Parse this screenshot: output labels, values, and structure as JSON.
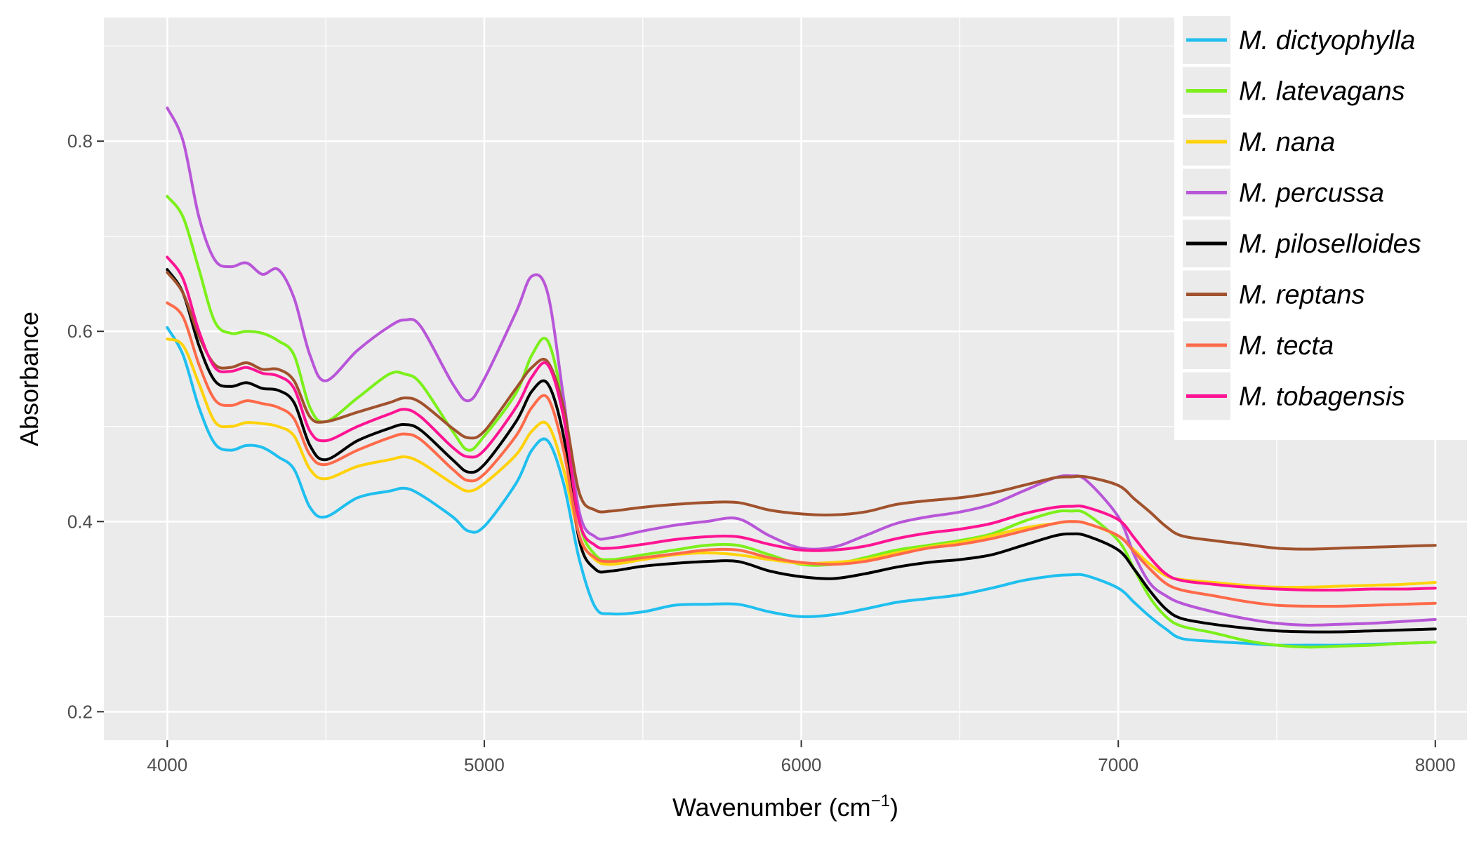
{
  "chart_data": {
    "type": "line",
    "xlabel": "Wavenumber (cm",
    "xlabel_sup": "−1",
    "xlabel_close": ")",
    "ylabel": "Absorbance",
    "xlim": [
      3800,
      8100
    ],
    "ylim": [
      0.17,
      0.93
    ],
    "xticks": [
      4000,
      5000,
      6000,
      7000,
      8000
    ],
    "xtick_labels": [
      "4000",
      "5000",
      "6000",
      "7000",
      "8000"
    ],
    "yticks": [
      0.2,
      0.4,
      0.6,
      0.8
    ],
    "ytick_labels": [
      "0.2",
      "0.4",
      "0.6",
      "0.8"
    ],
    "grid": true,
    "legend_position": "top-right",
    "x": [
      4000,
      4050,
      4100,
      4150,
      4200,
      4250,
      4300,
      4350,
      4400,
      4450,
      4500,
      4600,
      4700,
      4750,
      4800,
      4900,
      4950,
      5000,
      5100,
      5150,
      5200,
      5250,
      5300,
      5350,
      5400,
      5500,
      5600,
      5700,
      5800,
      5900,
      6000,
      6100,
      6200,
      6300,
      6400,
      6500,
      6600,
      6700,
      6800,
      6850,
      6900,
      7000,
      7050,
      7100,
      7150,
      7200,
      7300,
      7400,
      7500,
      7600,
      7700,
      7800,
      7900,
      8000
    ],
    "series": [
      {
        "name": "M. dictyophylla",
        "color": "#1fbfef",
        "values": [
          0.604,
          0.575,
          0.52,
          0.482,
          0.475,
          0.48,
          0.478,
          0.468,
          0.455,
          0.415,
          0.405,
          0.425,
          0.432,
          0.435,
          0.428,
          0.405,
          0.39,
          0.395,
          0.44,
          0.475,
          0.485,
          0.44,
          0.36,
          0.31,
          0.303,
          0.305,
          0.312,
          0.313,
          0.313,
          0.305,
          0.3,
          0.302,
          0.308,
          0.315,
          0.319,
          0.323,
          0.33,
          0.338,
          0.343,
          0.344,
          0.343,
          0.33,
          0.315,
          0.3,
          0.287,
          0.277,
          0.274,
          0.272,
          0.27,
          0.27,
          0.27,
          0.271,
          0.272,
          0.273
        ]
      },
      {
        "name": "M. latevagans",
        "color": "#7cf01a",
        "values": [
          0.742,
          0.72,
          0.665,
          0.61,
          0.598,
          0.6,
          0.598,
          0.59,
          0.575,
          0.52,
          0.505,
          0.53,
          0.555,
          0.555,
          0.545,
          0.495,
          0.475,
          0.49,
          0.535,
          0.575,
          0.59,
          0.52,
          0.4,
          0.365,
          0.36,
          0.365,
          0.37,
          0.375,
          0.375,
          0.365,
          0.355,
          0.355,
          0.362,
          0.37,
          0.375,
          0.38,
          0.387,
          0.4,
          0.41,
          0.411,
          0.408,
          0.38,
          0.35,
          0.32,
          0.3,
          0.29,
          0.283,
          0.275,
          0.27,
          0.268,
          0.269,
          0.27,
          0.272,
          0.273
        ]
      },
      {
        "name": "M. nana",
        "color": "#ffd20a",
        "values": [
          0.592,
          0.585,
          0.545,
          0.505,
          0.5,
          0.504,
          0.503,
          0.5,
          0.49,
          0.455,
          0.445,
          0.458,
          0.465,
          0.468,
          0.462,
          0.44,
          0.432,
          0.44,
          0.47,
          0.495,
          0.502,
          0.455,
          0.385,
          0.36,
          0.355,
          0.36,
          0.365,
          0.367,
          0.365,
          0.36,
          0.356,
          0.357,
          0.36,
          0.367,
          0.373,
          0.378,
          0.385,
          0.393,
          0.398,
          0.4,
          0.398,
          0.385,
          0.37,
          0.355,
          0.343,
          0.339,
          0.336,
          0.333,
          0.331,
          0.331,
          0.332,
          0.333,
          0.334,
          0.336
        ]
      },
      {
        "name": "M. percussa",
        "color": "#b856d8",
        "values": [
          0.835,
          0.8,
          0.72,
          0.675,
          0.668,
          0.672,
          0.66,
          0.665,
          0.635,
          0.575,
          0.548,
          0.58,
          0.605,
          0.612,
          0.605,
          0.545,
          0.527,
          0.55,
          0.62,
          0.658,
          0.64,
          0.53,
          0.41,
          0.384,
          0.383,
          0.39,
          0.396,
          0.4,
          0.403,
          0.385,
          0.372,
          0.373,
          0.385,
          0.398,
          0.405,
          0.41,
          0.418,
          0.432,
          0.446,
          0.448,
          0.443,
          0.405,
          0.365,
          0.335,
          0.322,
          0.314,
          0.305,
          0.298,
          0.293,
          0.291,
          0.292,
          0.293,
          0.295,
          0.297
        ]
      },
      {
        "name": "M. piloselloides",
        "color": "#000000",
        "values": [
          0.665,
          0.64,
          0.585,
          0.548,
          0.542,
          0.546,
          0.54,
          0.538,
          0.525,
          0.48,
          0.465,
          0.485,
          0.498,
          0.502,
          0.496,
          0.465,
          0.452,
          0.46,
          0.505,
          0.537,
          0.545,
          0.49,
          0.38,
          0.35,
          0.348,
          0.353,
          0.356,
          0.358,
          0.358,
          0.348,
          0.342,
          0.34,
          0.345,
          0.352,
          0.357,
          0.36,
          0.365,
          0.375,
          0.385,
          0.387,
          0.385,
          0.37,
          0.35,
          0.327,
          0.308,
          0.298,
          0.292,
          0.288,
          0.285,
          0.284,
          0.284,
          0.285,
          0.286,
          0.287
        ]
      },
      {
        "name": "M. reptans",
        "color": "#a0522d",
        "values": [
          0.662,
          0.64,
          0.595,
          0.565,
          0.562,
          0.567,
          0.56,
          0.56,
          0.548,
          0.51,
          0.505,
          0.515,
          0.525,
          0.53,
          0.525,
          0.498,
          0.488,
          0.495,
          0.54,
          0.562,
          0.568,
          0.52,
          0.43,
          0.412,
          0.411,
          0.415,
          0.418,
          0.42,
          0.42,
          0.412,
          0.408,
          0.407,
          0.41,
          0.418,
          0.422,
          0.425,
          0.43,
          0.438,
          0.446,
          0.447,
          0.447,
          0.438,
          0.424,
          0.41,
          0.395,
          0.385,
          0.38,
          0.376,
          0.372,
          0.371,
          0.372,
          0.373,
          0.374,
          0.375
        ]
      },
      {
        "name": "M. tecta",
        "color": "#ff6a4a",
        "values": [
          0.63,
          0.615,
          0.565,
          0.528,
          0.522,
          0.527,
          0.524,
          0.52,
          0.508,
          0.47,
          0.46,
          0.475,
          0.488,
          0.492,
          0.486,
          0.455,
          0.443,
          0.45,
          0.49,
          0.52,
          0.53,
          0.475,
          0.385,
          0.362,
          0.358,
          0.362,
          0.366,
          0.37,
          0.37,
          0.362,
          0.357,
          0.355,
          0.358,
          0.365,
          0.372,
          0.376,
          0.382,
          0.39,
          0.398,
          0.4,
          0.398,
          0.385,
          0.368,
          0.35,
          0.335,
          0.328,
          0.322,
          0.316,
          0.312,
          0.311,
          0.311,
          0.312,
          0.313,
          0.314
        ]
      },
      {
        "name": "M. tobagensis",
        "color": "#ff1493",
        "values": [
          0.678,
          0.655,
          0.6,
          0.562,
          0.558,
          0.562,
          0.556,
          0.553,
          0.54,
          0.495,
          0.485,
          0.5,
          0.513,
          0.518,
          0.51,
          0.478,
          0.468,
          0.475,
          0.52,
          0.552,
          0.565,
          0.51,
          0.4,
          0.375,
          0.372,
          0.376,
          0.381,
          0.384,
          0.384,
          0.376,
          0.37,
          0.37,
          0.374,
          0.382,
          0.388,
          0.392,
          0.398,
          0.408,
          0.415,
          0.416,
          0.415,
          0.402,
          0.383,
          0.362,
          0.345,
          0.338,
          0.334,
          0.331,
          0.329,
          0.328,
          0.328,
          0.329,
          0.329,
          0.33
        ]
      }
    ]
  }
}
